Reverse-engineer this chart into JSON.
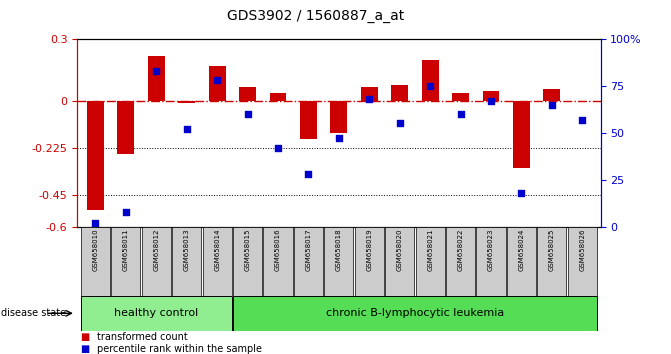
{
  "title": "GDS3902 / 1560887_a_at",
  "samples": [
    "GSM658010",
    "GSM658011",
    "GSM658012",
    "GSM658013",
    "GSM658014",
    "GSM658015",
    "GSM658016",
    "GSM658017",
    "GSM658018",
    "GSM658019",
    "GSM658020",
    "GSM658021",
    "GSM658022",
    "GSM658023",
    "GSM658024",
    "GSM658025",
    "GSM658026"
  ],
  "red_bars": [
    -0.52,
    -0.25,
    0.22,
    -0.005,
    0.17,
    0.07,
    0.04,
    -0.18,
    -0.15,
    0.07,
    0.08,
    0.2,
    0.04,
    0.05,
    -0.32,
    0.06,
    0.0
  ],
  "blue_dots": [
    2,
    8,
    83,
    52,
    78,
    60,
    42,
    28,
    47,
    68,
    55,
    75,
    60,
    67,
    18,
    65,
    57
  ],
  "healthy_count": 5,
  "ylim_left": [
    -0.6,
    0.3
  ],
  "ylim_right": [
    0,
    100
  ],
  "yticks_left": [
    0.3,
    0.0,
    -0.225,
    -0.45,
    -0.6
  ],
  "ytick_labels_left": [
    "0.3",
    "0",
    "-0.225",
    "-0.45",
    "-0.6"
  ],
  "yticks_right": [
    100,
    75,
    50,
    25,
    0
  ],
  "ytick_labels_right": [
    "100%",
    "75",
    "50",
    "25",
    "0"
  ],
  "bar_color": "#cc0000",
  "dot_color": "#0000cc",
  "zero_line_color": "#cc0000",
  "dotted_line_color": "#000000",
  "healthy_color": "#90ee90",
  "leukemia_color": "#55dd55",
  "label_bg": "#cccccc",
  "group_label_healthy": "healthy control",
  "group_label_leukemia": "chronic B-lymphocytic leukemia",
  "disease_state_label": "disease state",
  "legend_red": "transformed count",
  "legend_blue": "percentile rank within the sample",
  "bar_width": 0.55
}
